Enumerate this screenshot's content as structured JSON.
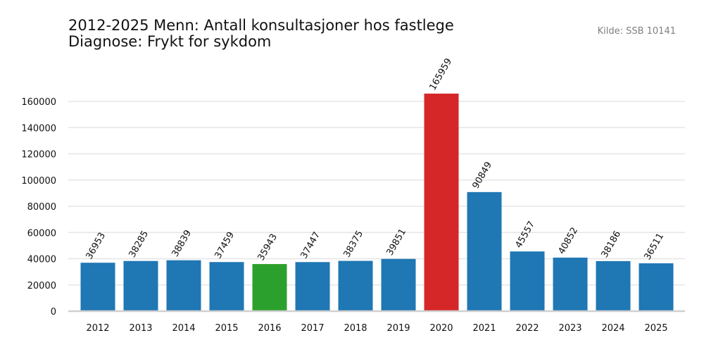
{
  "header": {
    "title_line1": "2012-2025 Menn: Antall konsultasjoner hos fastlege",
    "title_line2": "Diagnose: Frykt for sykdom",
    "source": "Kilde: SSB 10141"
  },
  "chart_data": {
    "type": "bar",
    "title": "2012-2025 Menn: Antall konsultasjoner hos fastlege\nDiagnose: Frykt for sykdom",
    "categories": [
      "2012",
      "2013",
      "2014",
      "2015",
      "2016",
      "2017",
      "2018",
      "2019",
      "2020",
      "2021",
      "2022",
      "2023",
      "2024",
      "2025"
    ],
    "values": [
      36953,
      38285,
      38839,
      37459,
      35943,
      37447,
      38375,
      39851,
      165959,
      90849,
      45557,
      40852,
      38186,
      36511
    ],
    "colors": [
      "#1f77b4",
      "#1f77b4",
      "#1f77b4",
      "#1f77b4",
      "#2ca02c",
      "#1f77b4",
      "#1f77b4",
      "#1f77b4",
      "#d62728",
      "#1f77b4",
      "#1f77b4",
      "#1f77b4",
      "#1f77b4",
      "#1f77b4"
    ],
    "yticks": [
      0,
      20000,
      40000,
      60000,
      80000,
      100000,
      120000,
      140000,
      160000
    ],
    "ylim": [
      0,
      174000
    ],
    "xlabel": "",
    "ylabel": "",
    "grid": true,
    "data_labels": true
  }
}
